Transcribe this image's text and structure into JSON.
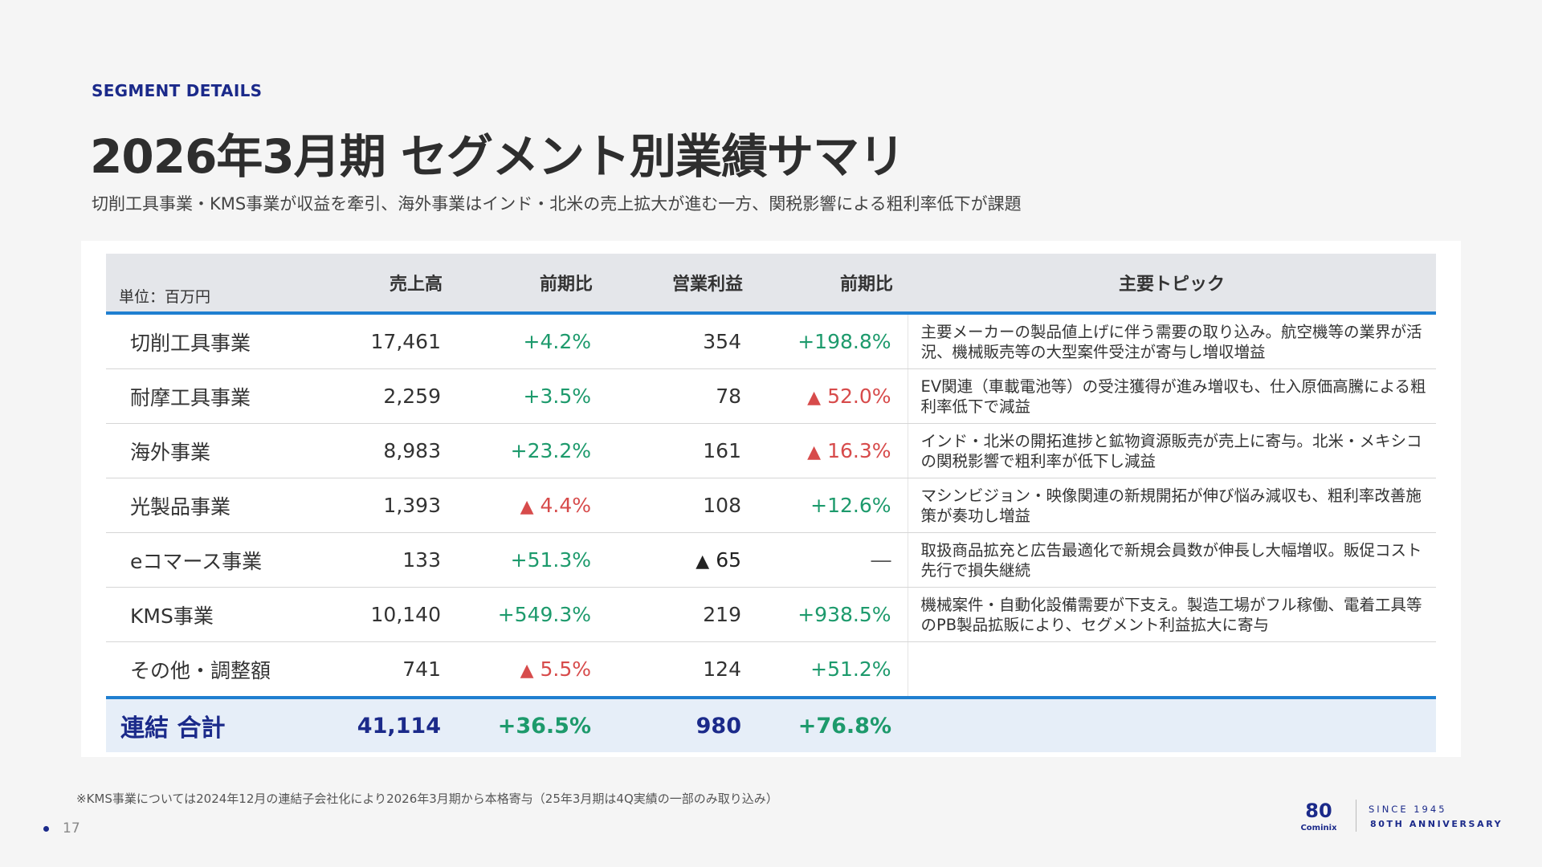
{
  "header": {
    "eyebrow": "SEGMENT DETAILS",
    "title": "2026年3月期 セグメント別業績サマリ",
    "subtitle": "切削工具事業・KMS事業が収益を牽引、海外事業はインド・北米の売上拡大が進む一方、関税影響による粗利率低下が課題"
  },
  "table": {
    "headers": {
      "unit": "単位：百万円",
      "sales": "売上高",
      "sales_yoy": "前期比",
      "op_profit": "営業利益",
      "op_yoy": "前期比",
      "topic": "主要トピック"
    },
    "rows": [
      {
        "name": "切削工具事業",
        "sales": "17,461",
        "sales_yoy": "+4.2%",
        "op": "354",
        "op_yoy": "+198.8%",
        "topic": "主要メーカーの製品値上げに伴う需要の取り込み。航空機等の業界が活況、機械販売等の大型案件受注が寄与し増収増益"
      },
      {
        "name": "耐摩工具事業",
        "sales": "2,259",
        "sales_yoy": "+3.5%",
        "op": "78",
        "op_yoy": "52.0%",
        "topic": "EV関連（車載電池等）の受注獲得が進み増収も、仕入原価高騰による粗利率低下で減益"
      },
      {
        "name": "海外事業",
        "sales": "8,983",
        "sales_yoy": "+23.2%",
        "op": "161",
        "op_yoy": "16.3%",
        "topic": "インド・北米の開拓進捗と鉱物資源販売が売上に寄与。北米・メキシコの関税影響で粗利率が低下し減益"
      },
      {
        "name": "光製品事業",
        "sales": "1,393",
        "sales_yoy": "4.4%",
        "op": "108",
        "op_yoy": "+12.6%",
        "topic": "マシンビジョン・映像関連の新規開拓が伸び悩み減収も、粗利率改善施策が奏功し増益"
      },
      {
        "name": "eコマース事業",
        "sales": "133",
        "sales_yoy": "+51.3%",
        "op": "65",
        "op_yoy": "―",
        "topic": "取扱商品拡充と広告最適化で新規会員数が伸長し大幅増収。販促コスト先行で損失継続"
      },
      {
        "name": "KMS事業",
        "sales": "10,140",
        "sales_yoy": "+549.3%",
        "op": "219",
        "op_yoy": "+938.5%",
        "topic": "機械案件・自動化設備需要が下支え。製造工場がフル稼働、電着工具等のPB製品拡販により、セグメント利益拡大に寄与"
      },
      {
        "name": "その他・調整額",
        "sales": "741",
        "sales_yoy": "5.5%",
        "op": "124",
        "op_yoy": "+51.2%",
        "topic": ""
      }
    ],
    "total": {
      "name": "連結 合計",
      "sales": "41,114",
      "sales_yoy": "+36.5%",
      "op": "980",
      "op_yoy": "+76.8%"
    },
    "triangle_glyph": "▲"
  },
  "footnote": "※KMS事業については2024年12月の連結子会社化により2026年3月期から本格寄与（25年3月期は4Q実績の一部のみ取り込み）",
  "page_number": "17",
  "logo": {
    "mark_text": "80",
    "brand": "Cominix",
    "since": "SINCE 1945",
    "anniversary": "80TH ANNIVERSARY"
  },
  "colors": {
    "navy": "#1b2a8a",
    "positive": "#1d9a6c",
    "negative": "#d74b4b",
    "accent_line": "#1f7fd0",
    "total_bg": "#e6eef8"
  }
}
